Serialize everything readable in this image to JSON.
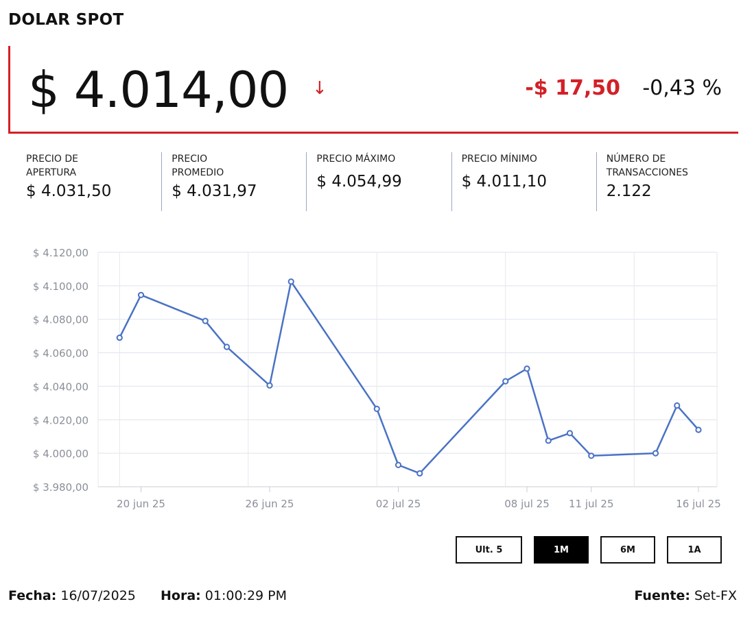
{
  "header": {
    "title": "DOLAR SPOT"
  },
  "price": {
    "value": "$ 4.014,00",
    "arrow": "↓",
    "change_abs": "-$ 17,50",
    "change_pct": "-0,43 %"
  },
  "stats": [
    {
      "label": "PRECIO DE\nAPERTURA",
      "value": "$ 4.031,50"
    },
    {
      "label": "PRECIO\nPROMEDIO",
      "value": "$ 4.031,97"
    },
    {
      "label": "PRECIO MÁXIMO",
      "value": "$ 4.054,99"
    },
    {
      "label": "PRECIO MÍNIMO",
      "value": "$ 4.011,10"
    },
    {
      "label": "NÚMERO DE\nTRANSACCIONES",
      "value": "2.122"
    }
  ],
  "chart_data": {
    "type": "line",
    "x": [
      "2025-06-19",
      "2025-06-20",
      "2025-06-23",
      "2025-06-24",
      "2025-06-26",
      "2025-06-27",
      "2025-07-01",
      "2025-07-02",
      "2025-07-03",
      "2025-07-07",
      "2025-07-08",
      "2025-07-09",
      "2025-07-10",
      "2025-07-11",
      "2025-07-14",
      "2025-07-15",
      "2025-07-16"
    ],
    "series": [
      {
        "values": [
          4069,
          4094.5,
          4079,
          4063.5,
          4040.5,
          4102.5,
          4026.5,
          3993,
          3988,
          4043,
          4050.5,
          4007.5,
          4012,
          3998.5,
          4000,
          4028.5,
          4014
        ]
      }
    ],
    "x_ticks": [
      "20 jun 25",
      "26 jun 25",
      "02 jul 25",
      "08 jul 25",
      "11 jul 25",
      "16 jul 25"
    ],
    "y_ticks": [
      "$ 4.120,00",
      "$ 4.100,00",
      "$ 4.080,00",
      "$ 4.060,00",
      "$ 4.040,00",
      "$ 4.020,00",
      "$ 4.000,00",
      "$ 3.980,00"
    ],
    "ylim": [
      3980,
      4120
    ],
    "grid": true,
    "line_color": "#4a72c4"
  },
  "range_buttons": [
    {
      "label": "Ult. 5",
      "active": false
    },
    {
      "label": "1M",
      "active": true
    },
    {
      "label": "6M",
      "active": false
    },
    {
      "label": "1A",
      "active": false
    }
  ],
  "footer": {
    "date_label": "Fecha:",
    "date_value": "16/07/2025",
    "time_label": "Hora:",
    "time_value": "01:00:29 PM",
    "source_label": "Fuente:",
    "source_value": "Set-FX"
  }
}
